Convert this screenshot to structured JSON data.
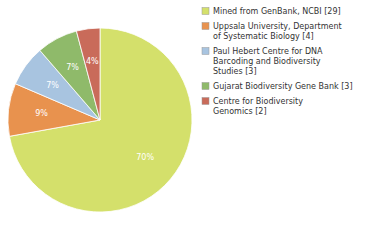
{
  "chart_data": {
    "type": "pie",
    "categories": [
      "Mined from GenBank, NCBI [29]",
      "Uppsala University, Department\nof Systematic Biology [4]",
      "Paul Hebert Centre for DNA\nBarcoding and Biodiversity\nStudies [3]",
      "Gujarat Biodiversity Gene Bank [3]",
      "Centre for Biodiversity\nGenomics [2]"
    ],
    "values": [
      70,
      9,
      7,
      7,
      4
    ],
    "value_labels": [
      "70%",
      "9%",
      "7%",
      "7%",
      "4%"
    ],
    "colors": [
      "#d4e06b",
      "#e8924e",
      "#a8c4e0",
      "#8fba6a",
      "#c96b5a"
    ],
    "data_labels": true,
    "legend": "right"
  }
}
